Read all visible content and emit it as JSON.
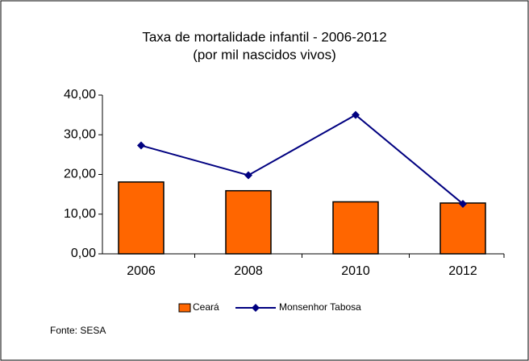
{
  "chart_data": {
    "type": "bar",
    "title": "Taxa de mortalidade infantil - 2006-2012",
    "subtitle": "(por mil nascidos vivos)",
    "categories": [
      "2006",
      "2008",
      "2010",
      "2012"
    ],
    "series": [
      {
        "name": "Ceará",
        "type": "bar",
        "color": "#ff6600",
        "values": [
          18.1,
          15.9,
          13.1,
          12.8
        ]
      },
      {
        "name": "Monsenhor Tabosa",
        "type": "line",
        "color": "#000080",
        "values": [
          27.3,
          19.8,
          35.0,
          12.6
        ]
      }
    ],
    "ylim": [
      0,
      40
    ],
    "yticks": [
      {
        "value": 0,
        "label": "0,00"
      },
      {
        "value": 10,
        "label": "10,00"
      },
      {
        "value": 20,
        "label": "20,00"
      },
      {
        "value": 30,
        "label": "30,00"
      },
      {
        "value": 40,
        "label": "40,00"
      }
    ],
    "legend": "bottom",
    "source": "Fonte: SESA"
  }
}
